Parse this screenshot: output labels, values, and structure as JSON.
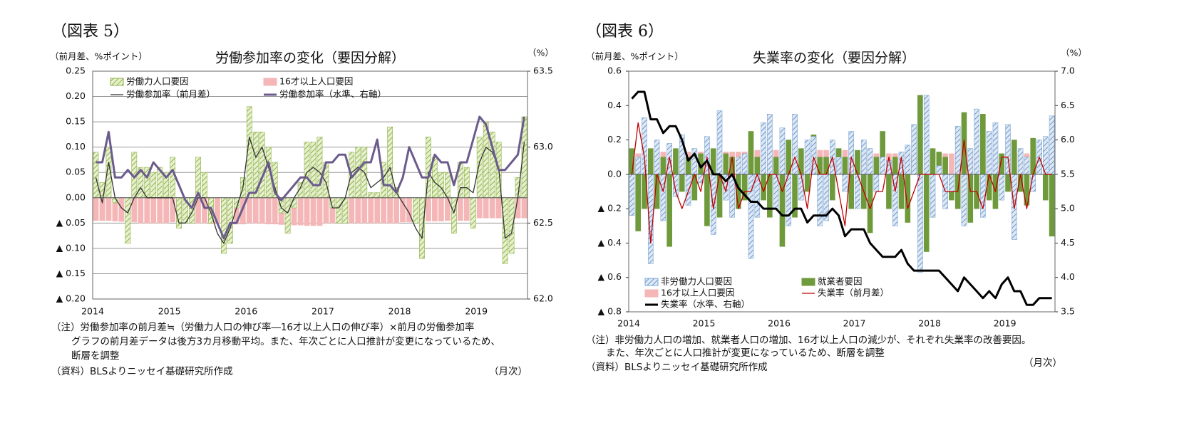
{
  "chart_data": [
    {
      "type": "combo",
      "figure_label": "（図表 5）",
      "title": "労働参加率の変化（要因分解）",
      "y_unit_label": "（前月差、%ポイント）",
      "y2_unit_label": "（%）",
      "x_unit_label": "（月次）",
      "notes": [
        "（注）労働参加率の前月差≒（労働力人口の伸び率―16才以上人口の伸び率）×前月の労働参加率",
        "グラフの前月差データは後方3カ月移動平均。また、年次ごとに人口推計が変更になっているため、",
        "断層を調整",
        "（資料）BLSよりニッセイ基礎研究所作成"
      ],
      "categories": [
        "2014",
        null,
        null,
        null,
        null,
        null,
        null,
        null,
        null,
        null,
        null,
        null,
        "2015",
        null,
        null,
        null,
        null,
        null,
        null,
        null,
        null,
        null,
        null,
        null,
        "2016",
        null,
        null,
        null,
        null,
        null,
        null,
        null,
        null,
        null,
        null,
        null,
        "2017",
        null,
        null,
        null,
        null,
        null,
        null,
        null,
        null,
        null,
        null,
        null,
        "2018",
        null,
        null,
        null,
        null,
        null,
        null,
        null,
        null,
        null,
        null,
        null,
        "2019",
        null,
        null,
        null,
        null,
        null,
        null,
        null
      ],
      "ylim": [
        -0.2,
        0.25
      ],
      "yticks": [
        0.25,
        {
          "value": 0.2,
          "label": "0.20"
        },
        0.15,
        {
          "value": 0.1,
          "label": "0.10"
        },
        0.05,
        {
          "value": 0,
          "label": "0.00"
        },
        {
          "value": -0.05,
          "label": "▲ 0.05"
        },
        {
          "value": -0.1,
          "label": "▲ 0.10"
        },
        {
          "value": -0.15,
          "label": "▲ 0.15"
        },
        {
          "value": -0.2,
          "label": "▲ 0.20"
        }
      ],
      "y2lim": [
        62,
        63.5
      ],
      "y2ticks": [
        {
          "value": 62,
          "label": "62.0"
        },
        62.5,
        {
          "value": 63,
          "label": "63.0"
        },
        63.5
      ],
      "grid": true,
      "series": [
        {
          "name": "労働力人口要因",
          "mark": "bar",
          "pattern": "hatch",
          "color": "#8fb24a",
          "values": [
            0.09,
            0.03,
            0.1,
            -0.01,
            0.0,
            -0.09,
            0.09,
            0.06,
            0.06,
            0.05,
            0.06,
            0.05,
            0.08,
            -0.06,
            -0.05,
            -0.05,
            0.08,
            0.05,
            -0.05,
            0.0,
            -0.11,
            -0.09,
            -0.02,
            0.04,
            0.18,
            0.13,
            0.13,
            0.1,
            0.07,
            -0.03,
            -0.07,
            -0.02,
            0.03,
            0.11,
            0.11,
            0.12,
            0.07,
            -0.02,
            -0.05,
            -0.05,
            0.09,
            0.1,
            0.1,
            0.01,
            0.01,
            0.07,
            0.14,
            0.02,
            0.0,
            0.0,
            -0.05,
            -0.12,
            0.12,
            0.08,
            0.05,
            0.05,
            -0.07,
            0.07,
            0.06,
            -0.06,
            0.12,
            0.15,
            0.13,
            0.11,
            -0.13,
            -0.11,
            0.04,
            0.16
          ]
        },
        {
          "name": "16才以上人口要因",
          "mark": "bar",
          "color": "#f4b6b6",
          "values": [
            -0.045,
            -0.045,
            -0.045,
            -0.046,
            -0.047,
            -0.048,
            -0.048,
            -0.05,
            -0.05,
            -0.05,
            -0.05,
            -0.05,
            -0.048,
            -0.048,
            -0.049,
            -0.05,
            -0.05,
            -0.05,
            -0.051,
            -0.051,
            -0.052,
            -0.052,
            -0.052,
            -0.052,
            -0.05,
            -0.05,
            -0.051,
            -0.052,
            -0.052,
            -0.053,
            -0.053,
            -0.054,
            -0.054,
            -0.055,
            -0.055,
            -0.055,
            -0.05,
            -0.05,
            -0.05,
            -0.05,
            -0.05,
            -0.05,
            -0.05,
            -0.05,
            -0.05,
            -0.05,
            -0.05,
            -0.05,
            -0.048,
            -0.048,
            -0.047,
            -0.047,
            -0.046,
            -0.046,
            -0.046,
            -0.045,
            -0.045,
            -0.045,
            -0.045,
            -0.045,
            -0.04,
            -0.04,
            -0.04,
            -0.04,
            -0.04,
            -0.04,
            -0.04,
            -0.04
          ]
        },
        {
          "name": "労働参加率（前月差）",
          "mark": "line",
          "color": "#333333",
          "values": [
            0.04,
            -0.01,
            0.07,
            0.0,
            -0.02,
            -0.03,
            0.0,
            0.02,
            0.0,
            0.0,
            0.0,
            0.0,
            0.0,
            -0.05,
            -0.05,
            -0.03,
            0.0,
            0.0,
            -0.03,
            -0.07,
            -0.09,
            -0.06,
            -0.02,
            0.02,
            0.12,
            0.08,
            0.1,
            0.06,
            0.02,
            -0.02,
            -0.03,
            0.0,
            0.02,
            0.05,
            0.06,
            0.05,
            0.03,
            -0.02,
            -0.02,
            0.0,
            0.05,
            0.06,
            0.05,
            0.02,
            0.03,
            0.04,
            0.06,
            0.01,
            -0.01,
            -0.03,
            -0.06,
            -0.08,
            0.05,
            0.03,
            0.02,
            0.0,
            -0.03,
            0.02,
            0.02,
            0.01,
            0.07,
            0.1,
            0.09,
            0.06,
            -0.08,
            -0.07,
            0.0,
            0.11
          ]
        },
        {
          "name": "労働参加率（水準、右軸）",
          "mark": "line",
          "axis": "y2",
          "color": "#6b5b8c",
          "values": [
            62.9,
            62.9,
            63.1,
            62.8,
            62.8,
            62.85,
            62.8,
            62.85,
            62.8,
            62.9,
            62.85,
            62.8,
            62.85,
            62.75,
            62.65,
            62.6,
            62.7,
            62.6,
            62.6,
            62.5,
            62.4,
            62.5,
            62.5,
            62.6,
            62.7,
            62.7,
            62.8,
            62.9,
            62.7,
            62.65,
            62.7,
            62.75,
            62.8,
            62.8,
            62.75,
            62.75,
            62.9,
            62.9,
            62.95,
            62.95,
            62.8,
            62.85,
            62.9,
            62.9,
            63.05,
            62.75,
            62.75,
            62.7,
            62.8,
            63.0,
            62.9,
            62.8,
            62.8,
            62.95,
            62.9,
            62.9,
            62.75,
            62.9,
            62.9,
            63.05,
            63.2,
            63.15,
            63.0,
            62.85,
            62.85,
            62.9,
            62.95,
            63.2
          ]
        }
      ]
    },
    {
      "type": "combo",
      "figure_label": "（図表 6）",
      "title": "失業率の変化（要因分解）",
      "y_unit_label": "（前月差、%ポイント）",
      "y2_unit_label": "（%）",
      "x_unit_label": "（月次）",
      "notes": [
        "（注）非労働力人口の増加、就業者人口の増加、16才以上人口の減少が、それぞれ失業率の改善要因。",
        "また、年次ごとに人口推計が変更になっているため、断層を調整",
        "（資料）BLSよりニッセイ基礎研究所作成"
      ],
      "categories": [
        "2014",
        null,
        null,
        null,
        null,
        null,
        null,
        null,
        null,
        null,
        null,
        null,
        "2015",
        null,
        null,
        null,
        null,
        null,
        null,
        null,
        null,
        null,
        null,
        null,
        "2016",
        null,
        null,
        null,
        null,
        null,
        null,
        null,
        null,
        null,
        null,
        null,
        "2017",
        null,
        null,
        null,
        null,
        null,
        null,
        null,
        null,
        null,
        null,
        null,
        "2018",
        null,
        null,
        null,
        null,
        null,
        null,
        null,
        null,
        null,
        null,
        null,
        "2019",
        null,
        null,
        null,
        null,
        null,
        null,
        null
      ],
      "ylim": [
        -0.8,
        0.6
      ],
      "yticks": [
        0.6,
        0.4,
        0.2,
        {
          "value": 0,
          "label": "0.0"
        },
        {
          "value": -0.2,
          "label": "▲ 0.2"
        },
        {
          "value": -0.4,
          "label": "▲ 0.4"
        },
        {
          "value": -0.6,
          "label": "▲ 0.6"
        },
        {
          "value": -0.8,
          "label": "▲ 0.8"
        }
      ],
      "y2lim": [
        3.5,
        7
      ],
      "y2ticks": [
        {
          "value": 7,
          "label": "7.0"
        },
        6.5,
        {
          "value": 6,
          "label": "6.0"
        },
        5.5,
        {
          "value": 5,
          "label": "5.0"
        },
        4.5,
        {
          "value": 4,
          "label": "4.0"
        },
        3.5
      ],
      "grid": false,
      "series": [
        {
          "name": "非労働力人口要因",
          "mark": "bar",
          "pattern": "hatch",
          "color": "#7fa7d6",
          "values": [
            -0.24,
            0.1,
            0.33,
            -0.52,
            0.2,
            -0.27,
            0.18,
            -0.13,
            0.23,
            -0.18,
            0.15,
            -0.05,
            0.22,
            -0.35,
            0.37,
            -0.15,
            -0.25,
            0.1,
            0.12,
            -0.49,
            -0.25,
            0.3,
            0.35,
            -0.2,
            0.27,
            -0.3,
            0.35,
            -0.15,
            0.2,
            0.22,
            -0.3,
            -0.27,
            0.2,
            0.1,
            -0.1,
            0.25,
            -0.2,
            0.2,
            0.15,
            -0.1,
            0.1,
            0.08,
            -0.3,
            0.13,
            0.17,
            0.29,
            -0.57,
            0.46,
            -0.25,
            0.05,
            -0.2,
            -0.1,
            0.28,
            -0.3,
            0.15,
            0.38,
            -0.25,
            0.25,
            0.3,
            -0.15,
            0.29,
            -0.38,
            0.15,
            0.1,
            -0.1,
            0.2,
            0.22,
            0.34
          ]
        },
        {
          "name": "就業者要因",
          "mark": "bar",
          "color": "#6e9a3c",
          "values": [
            0.15,
            -0.33,
            -0.2,
            0.15,
            -0.2,
            0.1,
            -0.42,
            0.15,
            -0.1,
            0.1,
            -0.15,
            0.12,
            -0.3,
            0.15,
            -0.25,
            0.12,
            0.1,
            -0.2,
            -0.15,
            0.25,
            0.1,
            -0.15,
            -0.25,
            0.1,
            -0.42,
            0.2,
            -0.25,
            0.15,
            -0.1,
            0.23,
            0.1,
            0.1,
            -0.15,
            0.15,
            0.1,
            -0.2,
            0.14,
            -0.2,
            -0.34,
            0.1,
            0.25,
            -0.2,
            0.1,
            -0.2,
            -0.28,
            0.1,
            0.46,
            -0.45,
            0.15,
            0.13,
            0.1,
            -0.15,
            -0.2,
            0.36,
            -0.28,
            -0.2,
            0.35,
            -0.15,
            -0.2,
            0.12,
            -0.1,
            0.2,
            -0.1,
            -0.18,
            0.21,
            0.15,
            -0.15,
            -0.36
          ]
        },
        {
          "name": "16才以上人口要因",
          "mark": "bar",
          "color": "#f4b6b6",
          "values": [
            0.11,
            0.12,
            0.12,
            0.12,
            0.12,
            0.13,
            0.13,
            0.13,
            0.13,
            0.13,
            0.13,
            0.13,
            0.12,
            0.12,
            0.13,
            0.13,
            0.13,
            0.13,
            0.13,
            0.14,
            0.14,
            0.14,
            0.14,
            0.14,
            0.13,
            0.13,
            0.13,
            0.13,
            0.14,
            0.14,
            0.14,
            0.14,
            0.14,
            0.14,
            0.14,
            0.14,
            0.12,
            0.12,
            0.12,
            0.12,
            0.12,
            0.12,
            0.12,
            0.12,
            0.12,
            0.12,
            0.12,
            0.12,
            0.12,
            0.12,
            0.12,
            0.12,
            0.12,
            0.12,
            0.12,
            0.12,
            0.12,
            0.12,
            0.12,
            0.12,
            0.12,
            0.12,
            0.12,
            0.12,
            0.12,
            0.12,
            0.12,
            0.12
          ]
        },
        {
          "name": "失業率（前月差）",
          "mark": "line",
          "color": "#c00000",
          "values": [
            0.0,
            0.3,
            0.1,
            -0.4,
            0.0,
            -0.1,
            0.1,
            -0.1,
            -0.2,
            -0.1,
            0.0,
            -0.1,
            0.1,
            -0.2,
            0.0,
            -0.1,
            0.1,
            -0.2,
            -0.1,
            -0.1,
            0.0,
            -0.1,
            0.0,
            0.0,
            -0.1,
            0.0,
            0.1,
            0.0,
            -0.2,
            0.1,
            0.0,
            0.0,
            0.1,
            -0.1,
            -0.3,
            0.1,
            0.0,
            -0.1,
            -0.2,
            -0.1,
            -0.1,
            0.1,
            -0.1,
            0.1,
            -0.2,
            -0.1,
            0.0,
            0.0,
            0.0,
            0.0,
            -0.1,
            -0.1,
            -0.1,
            0.2,
            -0.1,
            -0.1,
            -0.2,
            0.0,
            -0.1,
            0.1,
            0.1,
            -0.2,
            0.0,
            -0.2,
            0.0,
            0.1,
            0.0,
            0.0
          ]
        },
        {
          "name": "失業率（水準、右軸）",
          "mark": "line",
          "axis": "y2",
          "color": "#000000",
          "values": [
            6.6,
            6.7,
            6.7,
            6.3,
            6.3,
            6.1,
            6.2,
            6.2,
            6.0,
            5.7,
            5.8,
            5.6,
            5.7,
            5.5,
            5.5,
            5.4,
            5.5,
            5.3,
            5.2,
            5.1,
            5.1,
            5.0,
            5.0,
            5.0,
            4.9,
            4.9,
            5.0,
            5.0,
            4.8,
            4.9,
            4.9,
            4.9,
            5.0,
            4.9,
            4.6,
            4.7,
            4.7,
            4.7,
            4.5,
            4.4,
            4.3,
            4.3,
            4.3,
            4.4,
            4.2,
            4.1,
            4.1,
            4.1,
            4.1,
            4.1,
            4.0,
            3.9,
            3.8,
            4.0,
            3.9,
            3.8,
            3.7,
            3.8,
            3.7,
            3.9,
            4.0,
            3.8,
            3.8,
            3.6,
            3.6,
            3.7,
            3.7,
            3.7
          ]
        }
      ]
    }
  ]
}
